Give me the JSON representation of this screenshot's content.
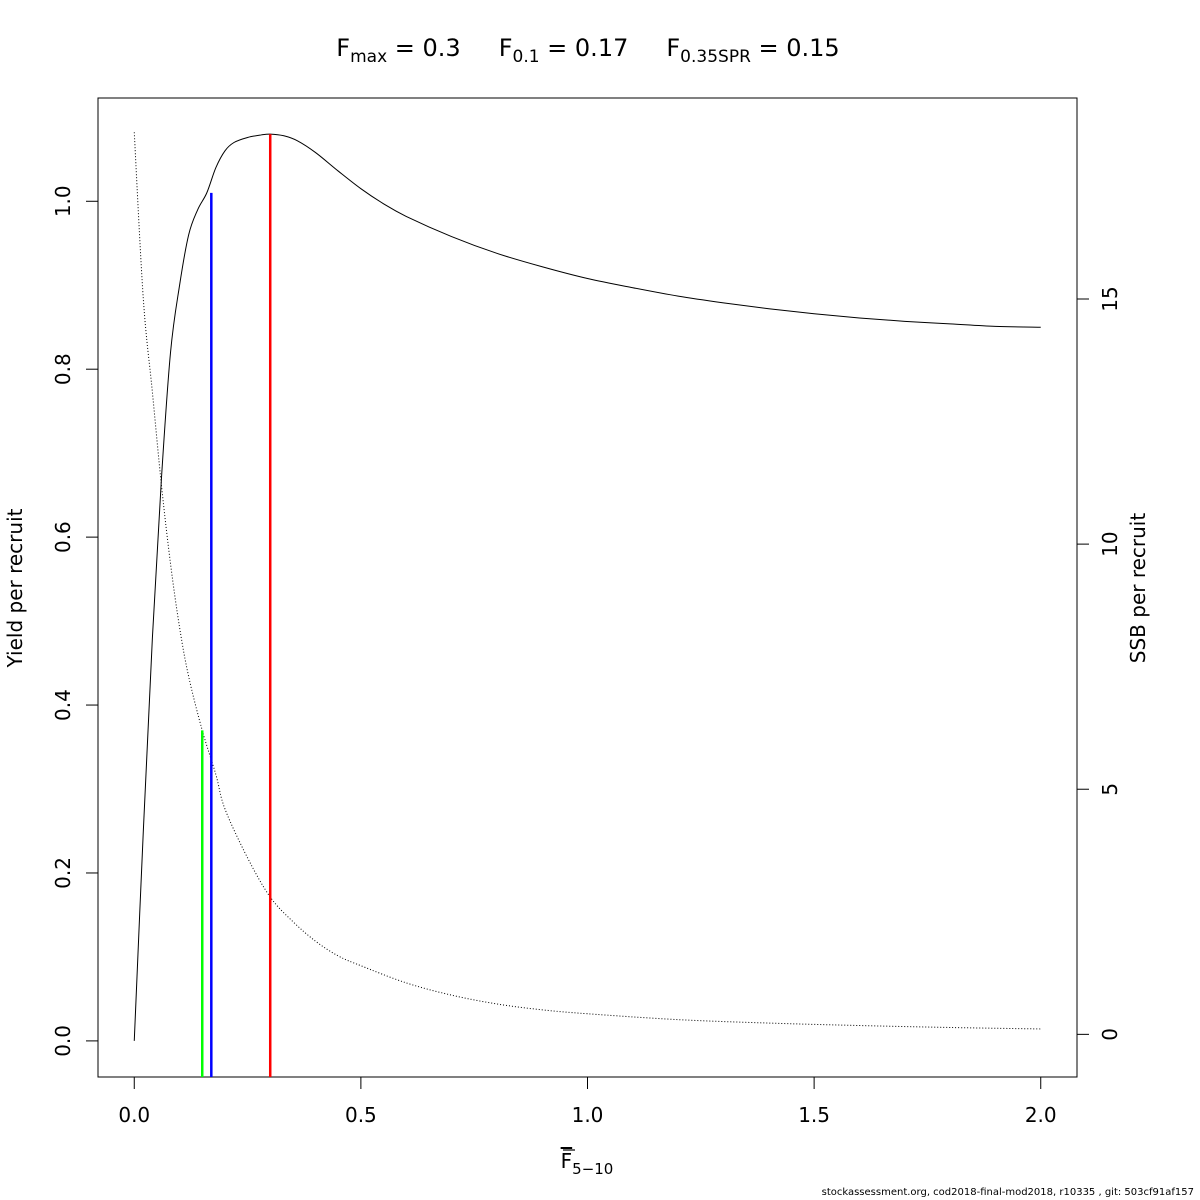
{
  "chart_data": {
    "type": "line",
    "title": {
      "parts": [
        {
          "main": "F",
          "sub": "max",
          "rest": " = 0.3"
        },
        {
          "main": "F",
          "sub": "0.1",
          "rest": " = 0.17"
        },
        {
          "main": "F",
          "sub": "0.35SPR",
          "rest": " = 0.15"
        }
      ]
    },
    "xlabel": {
      "main": "F",
      "sub": "5−10",
      "overline": true
    },
    "ylabel": "Yield per recruit",
    "y2label": "SSB per recruit",
    "xlim": [
      -0.08,
      2.08
    ],
    "ylim": [
      -0.043,
      1.123
    ],
    "y2lim": [
      -0.87,
      19.1
    ],
    "xticks": [
      0.0,
      0.5,
      1.0,
      1.5,
      2.0
    ],
    "xtick_labels": [
      "0.0",
      "0.5",
      "1.0",
      "1.5",
      "2.0"
    ],
    "yticks": [
      0.0,
      0.2,
      0.4,
      0.6,
      0.8,
      1.0
    ],
    "ytick_labels": [
      "0.0",
      "0.2",
      "0.4",
      "0.6",
      "0.8",
      "1.0"
    ],
    "y2ticks": [
      0,
      5,
      10,
      15
    ],
    "y2tick_labels": [
      "0",
      "5",
      "10",
      "15"
    ],
    "grid": false,
    "series": [
      {
        "axis": "left",
        "style": "solid",
        "color": "#000000",
        "x": [
          0.0,
          0.02,
          0.04,
          0.06,
          0.08,
          0.1,
          0.12,
          0.14,
          0.16,
          0.18,
          0.2,
          0.22,
          0.25,
          0.28,
          0.3,
          0.33,
          0.36,
          0.4,
          0.45,
          0.5,
          0.55,
          0.6,
          0.7,
          0.8,
          0.9,
          1.0,
          1.1,
          1.2,
          1.3,
          1.4,
          1.5,
          1.6,
          1.7,
          1.8,
          1.9,
          2.0
        ],
        "y": [
          0.0,
          0.25,
          0.48,
          0.67,
          0.82,
          0.9,
          0.96,
          0.99,
          1.01,
          1.04,
          1.06,
          1.07,
          1.076,
          1.079,
          1.08,
          1.078,
          1.072,
          1.058,
          1.036,
          1.015,
          0.997,
          0.982,
          0.958,
          0.938,
          0.922,
          0.908,
          0.897,
          0.887,
          0.879,
          0.872,
          0.866,
          0.861,
          0.857,
          0.854,
          0.851,
          0.85
        ]
      },
      {
        "axis": "right",
        "style": "dotted",
        "color": "#000000",
        "x": [
          0.0,
          0.02,
          0.04,
          0.06,
          0.08,
          0.1,
          0.12,
          0.15,
          0.18,
          0.2,
          0.25,
          0.3,
          0.35,
          0.4,
          0.45,
          0.5,
          0.6,
          0.7,
          0.8,
          0.9,
          1.0,
          1.2,
          1.4,
          1.6,
          1.8,
          2.0
        ],
        "y": [
          18.4,
          15.0,
          13.1,
          11.2,
          9.6,
          8.3,
          7.3,
          6.2,
          5.3,
          4.6,
          3.6,
          2.8,
          2.3,
          1.9,
          1.6,
          1.4,
          1.05,
          0.8,
          0.62,
          0.5,
          0.42,
          0.3,
          0.23,
          0.18,
          0.14,
          0.11
        ]
      }
    ],
    "reference_lines": [
      {
        "name": "F0.35SPR",
        "x": 0.15,
        "y_top_axis": "right",
        "y_top": 6.2,
        "color": "#00ff00"
      },
      {
        "name": "F0.1",
        "x": 0.17,
        "y_top_axis": "left",
        "y_top": 1.01,
        "color": "#0000ff"
      },
      {
        "name": "Fmax",
        "x": 0.3,
        "y_top_axis": "left",
        "y_top": 1.08,
        "color": "#ff0000"
      }
    ]
  },
  "footer": "stockassessment.org, cod2018-final-mod2018, r10335 , git: 503cf91af157"
}
